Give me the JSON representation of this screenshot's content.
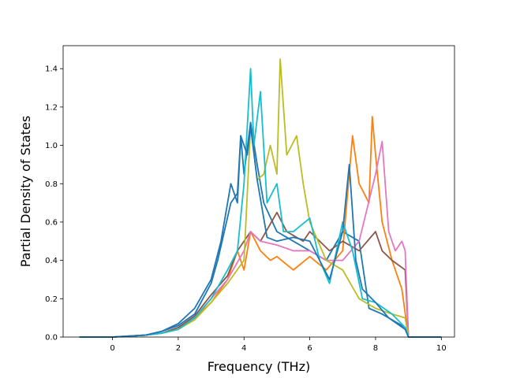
{
  "chart_data": {
    "type": "line",
    "title": "",
    "xlabel": "Frequency (THz)",
    "ylabel": "Partial Density of States",
    "xlim": [
      -1.5,
      10.4
    ],
    "ylim": [
      0,
      1.52
    ],
    "xticks": [
      0,
      2,
      4,
      6,
      8,
      10
    ],
    "yticks": [
      0.0,
      0.2,
      0.4,
      0.6,
      0.8,
      1.0,
      1.2,
      1.4
    ],
    "xtick_labels": [
      "0",
      "2",
      "4",
      "6",
      "8",
      "10"
    ],
    "ytick_labels": [
      "0.0",
      "0.2",
      "0.4",
      "0.6",
      "0.8",
      "1.0",
      "1.2",
      "1.4"
    ],
    "grid": false,
    "legend": "none",
    "series": [
      {
        "color": "#1f77b4",
        "points": [
          [
            -1.0,
            0
          ],
          [
            0,
            0
          ],
          [
            1.0,
            0.01
          ],
          [
            1.5,
            0.03
          ],
          [
            2.0,
            0.06
          ],
          [
            2.5,
            0.12
          ],
          [
            3.0,
            0.28
          ],
          [
            3.2,
            0.4
          ],
          [
            3.4,
            0.55
          ],
          [
            3.6,
            0.7
          ],
          [
            3.8,
            0.75
          ],
          [
            3.9,
            1.05
          ],
          [
            4.0,
            0.85
          ],
          [
            4.2,
            1.12
          ],
          [
            4.4,
            0.9
          ],
          [
            4.6,
            0.7
          ],
          [
            5.0,
            0.55
          ],
          [
            5.5,
            0.5
          ],
          [
            6.0,
            0.45
          ],
          [
            6.5,
            0.4
          ],
          [
            7.0,
            0.55
          ],
          [
            7.5,
            0.5
          ],
          [
            7.8,
            0.15
          ],
          [
            8.2,
            0.12
          ],
          [
            8.6,
            0.08
          ],
          [
            8.9,
            0.05
          ],
          [
            9.0,
            0
          ],
          [
            10.0,
            0
          ]
        ]
      },
      {
        "color": "#ff7f0e",
        "points": [
          [
            -1.0,
            0
          ],
          [
            0,
            0
          ],
          [
            1.0,
            0.01
          ],
          [
            1.5,
            0.02
          ],
          [
            2.0,
            0.05
          ],
          [
            2.5,
            0.1
          ],
          [
            3.0,
            0.18
          ],
          [
            3.5,
            0.3
          ],
          [
            3.8,
            0.45
          ],
          [
            4.0,
            0.35
          ],
          [
            4.2,
            0.55
          ],
          [
            4.5,
            0.45
          ],
          [
            4.8,
            0.4
          ],
          [
            5.0,
            0.42
          ],
          [
            5.5,
            0.35
          ],
          [
            6.0,
            0.42
          ],
          [
            6.5,
            0.35
          ],
          [
            7.0,
            0.45
          ],
          [
            7.3,
            1.05
          ],
          [
            7.5,
            0.8
          ],
          [
            7.8,
            0.7
          ],
          [
            7.9,
            1.15
          ],
          [
            8.0,
            0.95
          ],
          [
            8.2,
            0.6
          ],
          [
            8.5,
            0.4
          ],
          [
            8.8,
            0.25
          ],
          [
            9.0,
            0
          ],
          [
            10.0,
            0
          ]
        ]
      },
      {
        "color": "#8c564b",
        "points": [
          [
            -1.0,
            0
          ],
          [
            0,
            0
          ],
          [
            1.0,
            0.01
          ],
          [
            1.5,
            0.02
          ],
          [
            2.0,
            0.05
          ],
          [
            2.5,
            0.11
          ],
          [
            3.0,
            0.22
          ],
          [
            3.5,
            0.32
          ],
          [
            3.8,
            0.45
          ],
          [
            4.0,
            0.5
          ],
          [
            4.2,
            0.55
          ],
          [
            4.5,
            0.5
          ],
          [
            5.0,
            0.65
          ],
          [
            5.3,
            0.55
          ],
          [
            5.8,
            0.5
          ],
          [
            6.0,
            0.55
          ],
          [
            6.3,
            0.5
          ],
          [
            6.6,
            0.45
          ],
          [
            7.0,
            0.5
          ],
          [
            7.5,
            0.45
          ],
          [
            8.0,
            0.55
          ],
          [
            8.2,
            0.45
          ],
          [
            8.5,
            0.4
          ],
          [
            8.9,
            0.35
          ],
          [
            9.0,
            0
          ],
          [
            10.0,
            0
          ]
        ]
      },
      {
        "color": "#e377c2",
        "points": [
          [
            -1.0,
            0
          ],
          [
            0,
            0
          ],
          [
            1.0,
            0.01
          ],
          [
            1.5,
            0.02
          ],
          [
            2.0,
            0.04
          ],
          [
            2.5,
            0.1
          ],
          [
            3.0,
            0.2
          ],
          [
            3.5,
            0.3
          ],
          [
            4.0,
            0.45
          ],
          [
            4.2,
            0.55
          ],
          [
            4.5,
            0.5
          ],
          [
            5.0,
            0.48
          ],
          [
            5.5,
            0.45
          ],
          [
            6.0,
            0.45
          ],
          [
            6.5,
            0.4
          ],
          [
            7.0,
            0.4
          ],
          [
            7.5,
            0.5
          ],
          [
            8.0,
            0.85
          ],
          [
            8.2,
            1.02
          ],
          [
            8.4,
            0.55
          ],
          [
            8.6,
            0.45
          ],
          [
            8.8,
            0.5
          ],
          [
            8.9,
            0.45
          ],
          [
            9.0,
            0
          ],
          [
            10.0,
            0
          ]
        ]
      },
      {
        "color": "#bcbd22",
        "points": [
          [
            -1.0,
            0
          ],
          [
            0,
            0
          ],
          [
            1.0,
            0.01
          ],
          [
            1.5,
            0.02
          ],
          [
            2.0,
            0.04
          ],
          [
            2.5,
            0.09
          ],
          [
            3.0,
            0.18
          ],
          [
            3.5,
            0.28
          ],
          [
            4.0,
            0.4
          ],
          [
            4.2,
            1.1
          ],
          [
            4.4,
            0.82
          ],
          [
            4.6,
            0.85
          ],
          [
            4.8,
            1.0
          ],
          [
            5.0,
            0.85
          ],
          [
            5.1,
            1.45
          ],
          [
            5.3,
            0.95
          ],
          [
            5.6,
            1.05
          ],
          [
            5.8,
            0.8
          ],
          [
            6.0,
            0.6
          ],
          [
            6.5,
            0.4
          ],
          [
            7.0,
            0.35
          ],
          [
            7.5,
            0.2
          ],
          [
            8.0,
            0.15
          ],
          [
            8.5,
            0.12
          ],
          [
            8.9,
            0.1
          ],
          [
            9.0,
            0
          ],
          [
            10.0,
            0
          ]
        ]
      },
      {
        "color": "#17becf",
        "points": [
          [
            -1.0,
            0
          ],
          [
            0,
            0
          ],
          [
            1.0,
            0.01
          ],
          [
            1.5,
            0.02
          ],
          [
            2.0,
            0.04
          ],
          [
            2.5,
            0.1
          ],
          [
            3.0,
            0.2
          ],
          [
            3.5,
            0.35
          ],
          [
            3.8,
            0.45
          ],
          [
            4.0,
            0.8
          ],
          [
            4.2,
            1.4
          ],
          [
            4.3,
            1.0
          ],
          [
            4.5,
            1.28
          ],
          [
            4.7,
            0.7
          ],
          [
            5.0,
            0.8
          ],
          [
            5.2,
            0.55
          ],
          [
            5.5,
            0.55
          ],
          [
            6.0,
            0.62
          ],
          [
            6.3,
            0.4
          ],
          [
            6.6,
            0.28
          ],
          [
            7.0,
            0.6
          ],
          [
            7.3,
            0.45
          ],
          [
            7.6,
            0.2
          ],
          [
            8.0,
            0.18
          ],
          [
            8.5,
            0.12
          ],
          [
            8.9,
            0.05
          ],
          [
            9.0,
            0
          ],
          [
            10.0,
            0
          ]
        ]
      },
      {
        "color": "#1f77b4",
        "points": [
          [
            -1.0,
            0
          ],
          [
            0,
            0
          ],
          [
            1.0,
            0.01
          ],
          [
            1.5,
            0.03
          ],
          [
            2.0,
            0.07
          ],
          [
            2.5,
            0.15
          ],
          [
            3.0,
            0.3
          ],
          [
            3.3,
            0.5
          ],
          [
            3.6,
            0.8
          ],
          [
            3.8,
            0.7
          ],
          [
            3.9,
            1.05
          ],
          [
            4.1,
            0.95
          ],
          [
            4.2,
            1.1
          ],
          [
            4.4,
            0.82
          ],
          [
            4.7,
            0.52
          ],
          [
            5.0,
            0.5
          ],
          [
            5.5,
            0.52
          ],
          [
            6.0,
            0.5
          ],
          [
            6.3,
            0.4
          ],
          [
            6.6,
            0.3
          ],
          [
            7.0,
            0.55
          ],
          [
            7.2,
            0.9
          ],
          [
            7.4,
            0.4
          ],
          [
            7.6,
            0.25
          ],
          [
            8.0,
            0.18
          ],
          [
            8.4,
            0.1
          ],
          [
            8.9,
            0.04
          ],
          [
            9.0,
            0
          ],
          [
            10.0,
            0
          ]
        ]
      }
    ]
  }
}
